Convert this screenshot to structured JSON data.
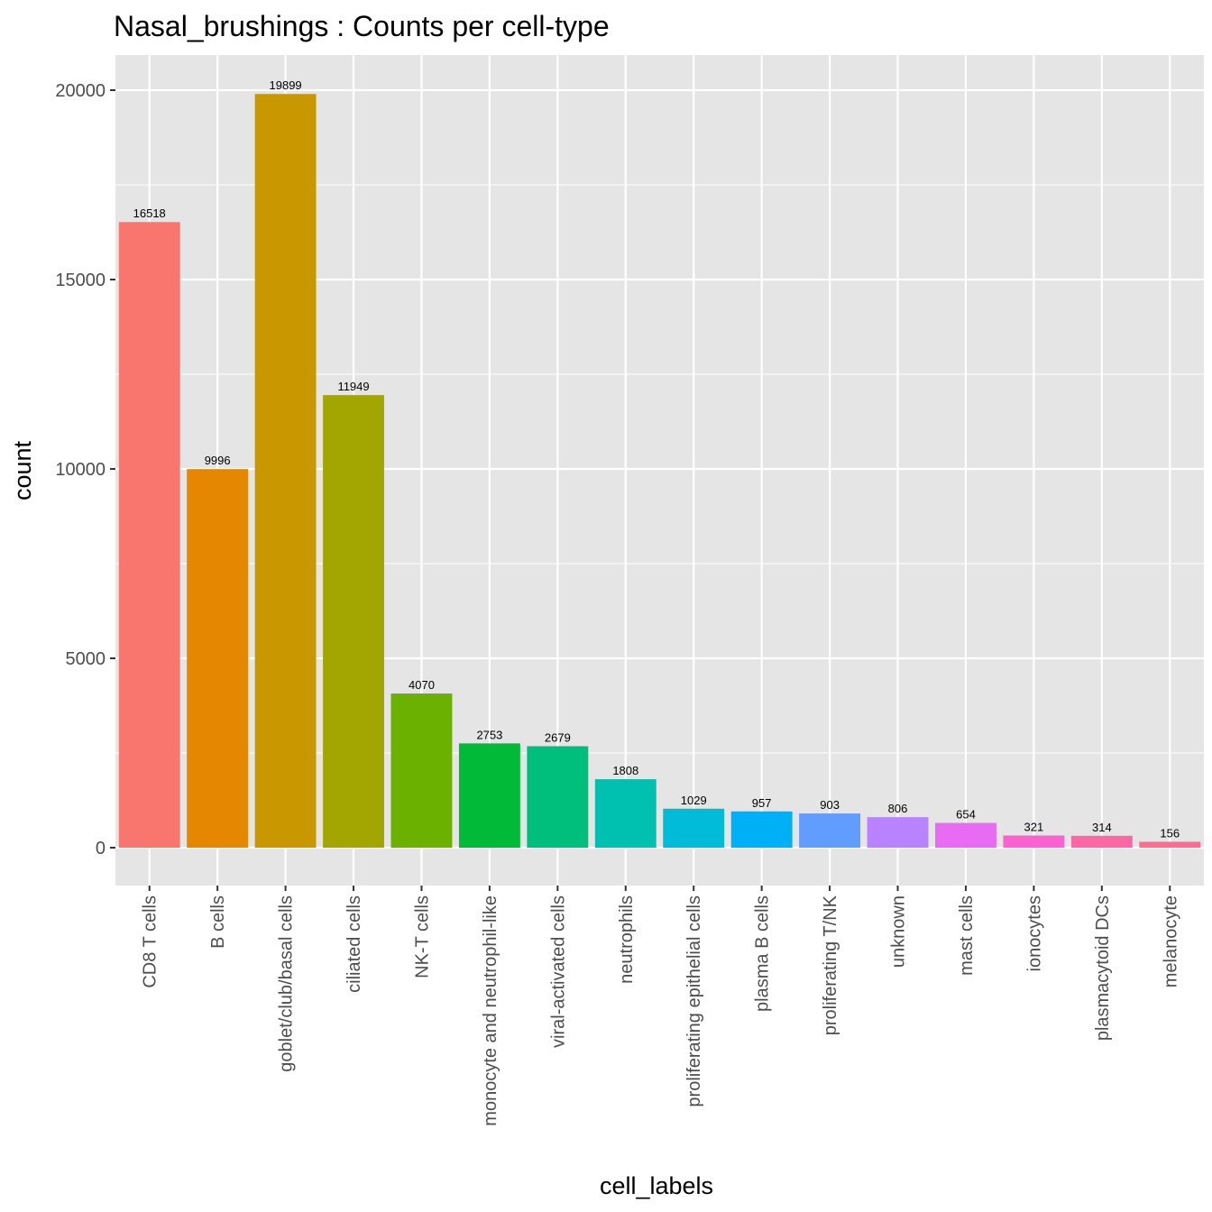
{
  "chart_data": {
    "type": "bar",
    "title": "Nasal_brushings : Counts per cell-type",
    "xlabel": "cell_labels",
    "ylabel": "count",
    "ylim": [
      -1000,
      21000
    ],
    "yticks": [
      0,
      5000,
      10000,
      15000,
      20000
    ],
    "grid": true,
    "categories": [
      "CD8 T cells",
      "B cells",
      "goblet/club/basal cells",
      "ciliated cells",
      "NK-T cells",
      "monocyte and neutrophil-like",
      "viral-activated cells",
      "neutrophils",
      "proliferating epithelial cells",
      "plasma B cells",
      "proliferating T/NK",
      "unknown",
      "mast cells",
      "ionocytes",
      "plasmacytoid DCs",
      "melanocyte"
    ],
    "values": [
      16518,
      9996,
      19899,
      11949,
      4070,
      2753,
      2679,
      1808,
      1029,
      957,
      903,
      806,
      654,
      321,
      314,
      156
    ],
    "colors": [
      "#F8766D",
      "#E58700",
      "#C99800",
      "#A3A500",
      "#6BB100",
      "#00BA38",
      "#00BF7D",
      "#00C0AF",
      "#00BCD8",
      "#00B0F6",
      "#619CFF",
      "#B983FF",
      "#E76BF3",
      "#FD61D1",
      "#FF67A4",
      "#FF6C91"
    ],
    "panel_background": "#e5e5e5",
    "grid_color": "#ffffff"
  }
}
